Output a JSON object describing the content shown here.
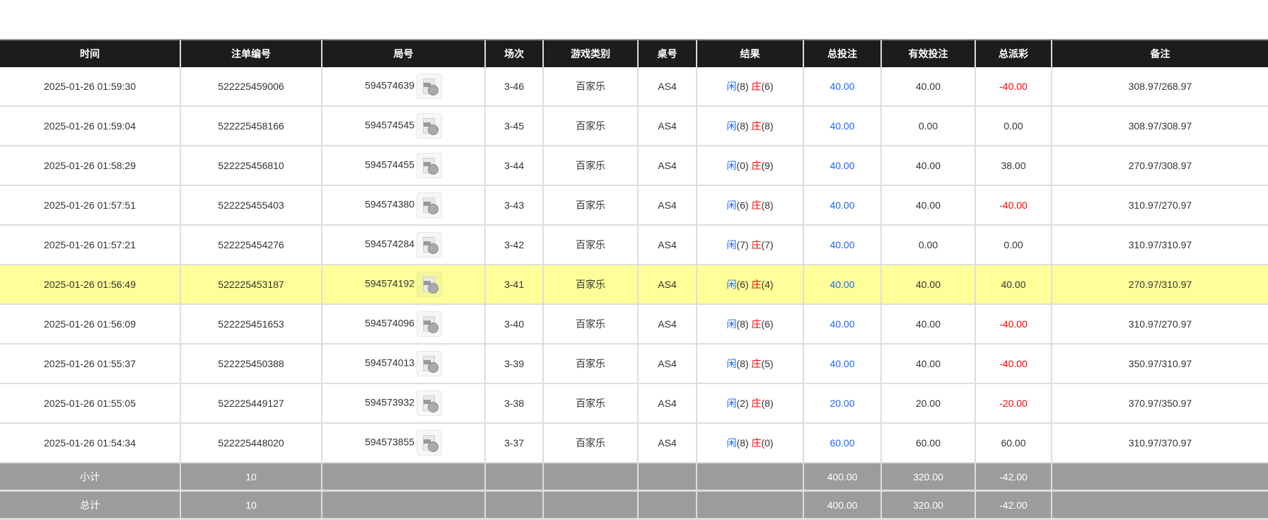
{
  "colors": {
    "header_bg": "#1c1c1c",
    "highlight_row": "#ffff99",
    "total_bg": "#9c9c9c",
    "player": "#1a66ff",
    "banker": "#ff0000",
    "negative": "#ff0000",
    "bet": "#1a66ff"
  },
  "columns": [
    "时间",
    "注单编号",
    "局号",
    "场次",
    "游戏类别",
    "桌号",
    "结果",
    "总投注",
    "有效投注",
    "总派彩",
    "备注"
  ],
  "rows": [
    {
      "time": "2025-01-26 01:59:30",
      "bet_id": "522225459006",
      "round": "594574639",
      "shoe": "3-46",
      "game": "百家乐",
      "table": "AS4",
      "player_label": "闲",
      "player": "(8)",
      "banker_label": "庄",
      "banker": "(6)",
      "total_bet": "40.00",
      "valid_bet": "40.00",
      "payout": "-40.00",
      "note": "308.97/268.97"
    },
    {
      "time": "2025-01-26 01:59:04",
      "bet_id": "522225458166",
      "round": "594574545",
      "shoe": "3-45",
      "game": "百家乐",
      "table": "AS4",
      "player_label": "闲",
      "player": "(8)",
      "banker_label": "庄",
      "banker": "(8)",
      "total_bet": "40.00",
      "valid_bet": "0.00",
      "payout": "0.00",
      "note": "308.97/308.97"
    },
    {
      "time": "2025-01-26 01:58:29",
      "bet_id": "522225456810",
      "round": "594574455",
      "shoe": "3-44",
      "game": "百家乐",
      "table": "AS4",
      "player_label": "闲",
      "player": "(0)",
      "banker_label": "庄",
      "banker": "(9)",
      "total_bet": "40.00",
      "valid_bet": "40.00",
      "payout": "38.00",
      "note": "270.97/308.97"
    },
    {
      "time": "2025-01-26 01:57:51",
      "bet_id": "522225455403",
      "round": "594574380",
      "shoe": "3-43",
      "game": "百家乐",
      "table": "AS4",
      "player_label": "闲",
      "player": "(6)",
      "banker_label": "庄",
      "banker": "(8)",
      "total_bet": "40.00",
      "valid_bet": "40.00",
      "payout": "-40.00",
      "note": "310.97/270.97"
    },
    {
      "time": "2025-01-26 01:57:21",
      "bet_id": "522225454276",
      "round": "594574284",
      "shoe": "3-42",
      "game": "百家乐",
      "table": "AS4",
      "player_label": "闲",
      "player": "(7)",
      "banker_label": "庄",
      "banker": "(7)",
      "total_bet": "40.00",
      "valid_bet": "0.00",
      "payout": "0.00",
      "note": "310.97/310.97"
    },
    {
      "time": "2025-01-26 01:56:49",
      "bet_id": "522225453187",
      "round": "594574192",
      "shoe": "3-41",
      "game": "百家乐",
      "table": "AS4",
      "player_label": "闲",
      "player": "(6)",
      "banker_label": "庄",
      "banker": "(4)",
      "total_bet": "40.00",
      "valid_bet": "40.00",
      "payout": "40.00",
      "note": "270.97/310.97",
      "highlighted": true
    },
    {
      "time": "2025-01-26 01:56:09",
      "bet_id": "522225451653",
      "round": "594574096",
      "shoe": "3-40",
      "game": "百家乐",
      "table": "AS4",
      "player_label": "闲",
      "player": "(8)",
      "banker_label": "庄",
      "banker": "(6)",
      "total_bet": "40.00",
      "valid_bet": "40.00",
      "payout": "-40.00",
      "note": "310.97/270.97"
    },
    {
      "time": "2025-01-26 01:55:37",
      "bet_id": "522225450388",
      "round": "594574013",
      "shoe": "3-39",
      "game": "百家乐",
      "table": "AS4",
      "player_label": "闲",
      "player": "(8)",
      "banker_label": "庄",
      "banker": "(5)",
      "total_bet": "40.00",
      "valid_bet": "40.00",
      "payout": "-40.00",
      "note": "350.97/310.97"
    },
    {
      "time": "2025-01-26 01:55:05",
      "bet_id": "522225449127",
      "round": "594573932",
      "shoe": "3-38",
      "game": "百家乐",
      "table": "AS4",
      "player_label": "闲",
      "player": "(2)",
      "banker_label": "庄",
      "banker": "(8)",
      "total_bet": "20.00",
      "valid_bet": "20.00",
      "payout": "-20.00",
      "note": "370.97/350.97"
    },
    {
      "time": "2025-01-26 01:54:34",
      "bet_id": "522225448020",
      "round": "594573855",
      "shoe": "3-37",
      "game": "百家乐",
      "table": "AS4",
      "player_label": "闲",
      "player": "(8)",
      "banker_label": "庄",
      "banker": "(0)",
      "total_bet": "60.00",
      "valid_bet": "60.00",
      "payout": "60.00",
      "note": "310.97/370.97"
    }
  ],
  "totals": [
    {
      "label": "小计",
      "count": "10",
      "total_bet": "400.00",
      "valid_bet": "320.00",
      "payout": "-42.00"
    },
    {
      "label": "总计",
      "count": "10",
      "total_bet": "400.00",
      "valid_bet": "320.00",
      "payout": "-42.00"
    }
  ],
  "icons": {
    "replay": "video-replay-icon"
  }
}
